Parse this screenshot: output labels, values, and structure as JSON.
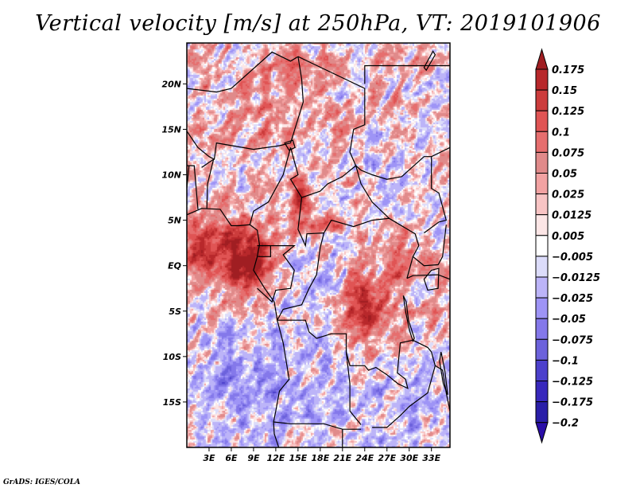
{
  "chart_data": {
    "type": "heatmap",
    "title": "Vertical velocity [m/s] at 250hPa, VT: 2019101906",
    "variable": "Vertical velocity",
    "units": "m/s",
    "level": "250hPa",
    "valid_time": "2019101906",
    "xlabel": "",
    "ylabel": "",
    "x_range_deg": [
      0,
      35.5
    ],
    "y_range_deg": [
      -20,
      24.5
    ],
    "x_ticks": [
      {
        "value": 3,
        "label": "3E"
      },
      {
        "value": 6,
        "label": "6E"
      },
      {
        "value": 9,
        "label": "9E"
      },
      {
        "value": 12,
        "label": "12E"
      },
      {
        "value": 15,
        "label": "15E"
      },
      {
        "value": 18,
        "label": "18E"
      },
      {
        "value": 21,
        "label": "21E"
      },
      {
        "value": 24,
        "label": "24E"
      },
      {
        "value": 27,
        "label": "27E"
      },
      {
        "value": 30,
        "label": "30E"
      },
      {
        "value": 33,
        "label": "33E"
      }
    ],
    "y_ticks": [
      {
        "value": 20,
        "label": "20N"
      },
      {
        "value": 15,
        "label": "15N"
      },
      {
        "value": 10,
        "label": "10N"
      },
      {
        "value": 5,
        "label": "5N"
      },
      {
        "value": 0,
        "label": "EQ"
      },
      {
        "value": -5,
        "label": "5S"
      },
      {
        "value": -10,
        "label": "10S"
      },
      {
        "value": -15,
        "label": "15S"
      }
    ],
    "colorbar": {
      "placement": "right",
      "levels": [
        {
          "label": "0.175",
          "color": "#a01e22"
        },
        {
          "label": "0.15",
          "color": "#b8282b"
        },
        {
          "label": "0.125",
          "color": "#cc3c3c"
        },
        {
          "label": "0.1",
          "color": "#e05454"
        },
        {
          "label": "0.075",
          "color": "#e66e6e"
        },
        {
          "label": "0.05",
          "color": "#e08a8a"
        },
        {
          "label": "0.025",
          "color": "#f2a2a2"
        },
        {
          "label": "0.0125",
          "color": "#f8c4c4"
        },
        {
          "label": "0.005",
          "color": "#fce6e6"
        },
        {
          "label": "-0.005",
          "color": "#ffffff"
        },
        {
          "label": "-0.0125",
          "color": "#dcdcfa"
        },
        {
          "label": "-0.025",
          "color": "#bcb4f8"
        },
        {
          "label": "-0.05",
          "color": "#9e94f6"
        },
        {
          "label": "-0.075",
          "color": "#8478ea"
        },
        {
          "label": "-0.1",
          "color": "#6c62dc"
        },
        {
          "label": "-0.125",
          "color": "#4c40cc"
        },
        {
          "label": "-0.175",
          "color": "#3828bc"
        },
        {
          "label": "-0.2",
          "color": "#2a1ea8"
        }
      ],
      "top_extend_color": "#a01e22",
      "bottom_extend_color": "#2a0ea8"
    },
    "notable_features": [
      "Strong ascent (dark red, >0.15 m/s) over Gulf of Guinea / Cameroon coast near EQ-5N, 8-11E",
      "Strong ascent clusters over central DR Congo near 0-5S, 22-26E",
      "Ascent near Nigeria/Cameroon border around 7-10N, 13E",
      "Mixed alternating banded ascent/descent elsewhere, descent dominating over Angola and southeast Atlantic"
    ]
  },
  "footer": {
    "credit": "GrADS: IGES/COLA"
  }
}
